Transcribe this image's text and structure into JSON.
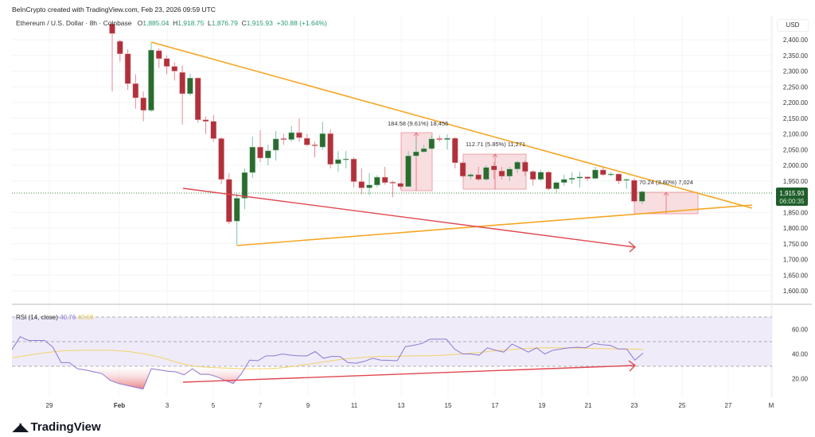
{
  "header": {
    "credit": "BeInCrypto created with TradingView.com, Feb 23, 2026 09:59 UTC",
    "symbol": "Ethereum / U.S. Dollar · 8h · Coinbase",
    "o_label": "O",
    "o": "1,885.04",
    "h_label": "H",
    "h": "1,918.75",
    "l_label": "L",
    "l": "1,876.79",
    "c_label": "C",
    "c": "1,915.93",
    "change": "+30.88 (+1.64%)"
  },
  "axis": {
    "currency": "USD",
    "current_price": "1,915.93",
    "countdown": "06:00:35"
  },
  "rsi_legend": {
    "label": "RSI (14, close)",
    "rsi": "40.76",
    "ma": "43.69"
  },
  "brand": {
    "name": "TradingView"
  },
  "colors": {
    "up": "#2d6a2f",
    "down": "#b0313b",
    "triangle": "#f5a623",
    "divergence": "#e0474f",
    "rsi": "#8c7ad6",
    "rsi_ma": "#f2d36b",
    "measure_fill": "#f6d6d9",
    "price_tag": "#1f5e2b"
  },
  "measurements": [
    {
      "label": "184.58 (9.61%) 18,456"
    },
    {
      "label": "112.71 (5.85%) 11,271"
    },
    {
      "label": "70.24 (3.80%) 7,024"
    }
  ],
  "chart_data": [
    {
      "type": "candlestick",
      "title": "Ethereum / U.S. Dollar · 8h · Coinbase",
      "ylabel": "USD",
      "ylim": [
        1560,
        2440
      ],
      "y_ticks": [
        "2,400.00",
        "2,350.00",
        "2,300.00",
        "2,250.00",
        "2,200.00",
        "2,150.00",
        "2,100.00",
        "2,050.00",
        "2,000.00",
        "1,950.00",
        "1,850.00",
        "1,800.00",
        "1,750.00",
        "1,700.00",
        "1,650.00",
        "1,600.00"
      ],
      "x_ticks": [
        "29",
        "Feb",
        "3",
        "5",
        "7",
        "9",
        "11",
        "13",
        "15",
        "17",
        "19",
        "21",
        "23",
        "25",
        "27",
        "M"
      ],
      "grid": true,
      "candles_ohlc": [
        [
          2450,
          2460,
          2235,
          2420
        ],
        [
          2395,
          2400,
          2330,
          2355
        ],
        [
          2355,
          2370,
          2240,
          2260
        ],
        [
          2260,
          2290,
          2180,
          2215
        ],
        [
          2215,
          2235,
          2140,
          2175
        ],
        [
          2175,
          2390,
          2170,
          2367
        ],
        [
          2365,
          2372,
          2310,
          2340
        ],
        [
          2340,
          2350,
          2290,
          2315
        ],
        [
          2315,
          2328,
          2270,
          2300
        ],
        [
          2296,
          2318,
          2130,
          2228
        ],
        [
          2228,
          2292,
          2222,
          2278
        ],
        [
          2278,
          2280,
          2135,
          2145
        ],
        [
          2145,
          2155,
          2100,
          2140
        ],
        [
          2140,
          2160,
          2075,
          2085
        ],
        [
          2085,
          2090,
          1940,
          1955
        ],
        [
          1955,
          1975,
          1812,
          1820
        ],
        [
          1822,
          1910,
          1745,
          1895
        ],
        [
          1895,
          1990,
          1860,
          1977
        ],
        [
          1977,
          2091,
          1960,
          2058
        ],
        [
          2058,
          2112,
          2010,
          2023
        ],
        [
          2023,
          2066,
          2000,
          2046
        ],
        [
          2048,
          2109,
          2015,
          2084
        ],
        [
          2085,
          2100,
          2065,
          2082
        ],
        [
          2082,
          2125,
          2075,
          2104
        ],
        [
          2104,
          2150,
          2075,
          2088
        ],
        [
          2086,
          2100,
          2060,
          2065
        ],
        [
          2065,
          2075,
          2025,
          2062
        ],
        [
          2058,
          2138,
          2050,
          2101
        ],
        [
          2101,
          2115,
          1990,
          2003
        ],
        [
          2005,
          2045,
          1980,
          2018
        ],
        [
          2018,
          2045,
          1990,
          2020
        ],
        [
          2020,
          2025,
          1930,
          1948
        ],
        [
          1948,
          1990,
          1907,
          1928
        ],
        [
          1928,
          1975,
          1905,
          1937
        ],
        [
          1937,
          1968,
          1930,
          1962
        ],
        [
          1962,
          1995,
          1938,
          1945
        ],
        [
          1946,
          1950,
          1898,
          1944
        ],
        [
          1942,
          1945,
          1925,
          1932
        ],
        [
          1932,
          2045,
          1930,
          2030
        ],
        [
          2030,
          2085,
          2025,
          2043
        ],
        [
          2043,
          2065,
          2040,
          2053
        ],
        [
          2053,
          2095,
          2050,
          2084
        ],
        [
          2085,
          2095,
          2075,
          2083
        ],
        [
          2082,
          2098,
          2050,
          2086
        ],
        [
          2086,
          2090,
          1990,
          2008
        ],
        [
          2008,
          2012,
          1960,
          1965
        ],
        [
          1965,
          1975,
          1955,
          1970
        ],
        [
          1970,
          1995,
          1950,
          1955
        ],
        [
          1955,
          2000,
          1950,
          1993
        ],
        [
          1998,
          2010,
          1955,
          1985
        ],
        [
          1982,
          1995,
          1955,
          1965
        ],
        [
          1965,
          1995,
          1950,
          1988
        ],
        [
          1988,
          2015,
          1975,
          2010
        ],
        [
          2010,
          2015,
          1965,
          1980
        ],
        [
          1980,
          1985,
          1935,
          1955
        ],
        [
          1955,
          1985,
          1950,
          1978
        ],
        [
          1978,
          1982,
          1920,
          1925
        ],
        [
          1925,
          1948,
          1910,
          1945
        ],
        [
          1945,
          1970,
          1935,
          1955
        ],
        [
          1955,
          1978,
          1940,
          1959
        ],
        [
          1959,
          1980,
          1930,
          1963
        ],
        [
          1963,
          1965,
          1950,
          1958
        ],
        [
          1958,
          1995,
          1955,
          1985
        ],
        [
          1985,
          1995,
          1965,
          1970
        ],
        [
          1970,
          1978,
          1965,
          1972
        ],
        [
          1972,
          1975,
          1940,
          1950
        ],
        [
          1952,
          1958,
          1925,
          1955
        ],
        [
          1952,
          1958,
          1880,
          1885
        ],
        [
          1885.04,
          1918.75,
          1876.79,
          1915.93
        ]
      ]
    },
    {
      "type": "line",
      "title": "RSI (14, close)",
      "ylim": [
        5,
        80
      ],
      "y_ticks": [
        "60.00",
        "40.00",
        "20.00"
      ],
      "bands": [
        30,
        50,
        70
      ],
      "series": [
        {
          "name": "RSI",
          "values": [
            43.5,
            54,
            51,
            51,
            51,
            45.5,
            33,
            33,
            28,
            27,
            25.5,
            24,
            18.5,
            16,
            14.5,
            13,
            11.5,
            28,
            27,
            26,
            25.5,
            23,
            28,
            23.5,
            23.5,
            21.5,
            18.5,
            16,
            24,
            35,
            34.5,
            38.5,
            38.5,
            40,
            39,
            38.5,
            38.5,
            42,
            36.5,
            38,
            38,
            33,
            32.5,
            34,
            36.5,
            35,
            34.8,
            34.5,
            46,
            47,
            48.5,
            52,
            52,
            52,
            44,
            40,
            40,
            39,
            45,
            43,
            41.5,
            48,
            45,
            41.5,
            45,
            40,
            43,
            44,
            45,
            45.5,
            45,
            48.5,
            47.5,
            47,
            44,
            44,
            35,
            40.76
          ]
        },
        {
          "name": "MA",
          "values": [
            37,
            39,
            41,
            42.5,
            43,
            43,
            43,
            42,
            40,
            37,
            33,
            30,
            29,
            28.5,
            28,
            28,
            28.5,
            30,
            32,
            34,
            36,
            37,
            38,
            38,
            38.5,
            38.5,
            39,
            40,
            41,
            42.5,
            43.5,
            44.5,
            45,
            45,
            44.8,
            44.5,
            44.2,
            44,
            43.69
          ]
        }
      ]
    }
  ]
}
